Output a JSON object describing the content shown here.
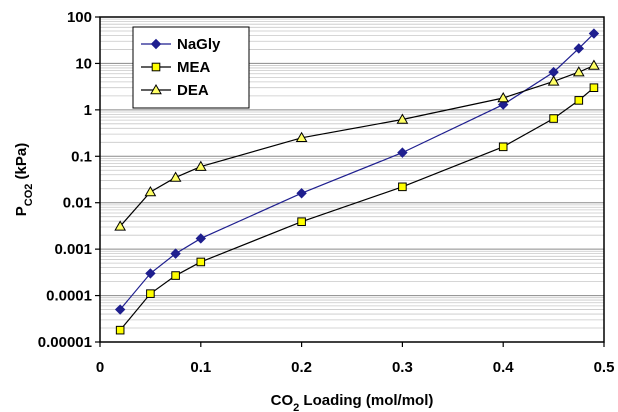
{
  "chart_data": {
    "type": "scatter",
    "xlabel": {
      "main": "CO",
      "sub": "2",
      "rest": " Loading (mol/mol)"
    },
    "ylabel": {
      "main": "P",
      "sub": "CO2",
      "rest": " (kPa)"
    },
    "xlim": [
      0,
      0.5
    ],
    "ylim": [
      1e-05,
      100
    ],
    "yscale": "log",
    "grid": true,
    "legend_position": "top-left",
    "x_ticks": [
      "0",
      "0.1",
      "0.2",
      "0.3",
      "0.4",
      "0.5"
    ],
    "y_ticks": [
      "0.00001",
      "0.0001",
      "0.001",
      "0.01",
      "0.1",
      "1",
      "10",
      "100"
    ],
    "series": [
      {
        "name": "NaGly",
        "color": "#1f1f8f",
        "marker": "diamond",
        "x": [
          0.02,
          0.05,
          0.075,
          0.1,
          0.2,
          0.3,
          0.4,
          0.45,
          0.475,
          0.49
        ],
        "y": [
          5e-05,
          0.0003,
          0.0008,
          0.0017,
          0.016,
          0.12,
          1.3,
          6.5,
          21,
          44
        ]
      },
      {
        "name": "MEA",
        "color": "#ffff00",
        "marker": "square",
        "x": [
          0.02,
          0.05,
          0.075,
          0.1,
          0.2,
          0.3,
          0.4,
          0.45,
          0.475,
          0.49
        ],
        "y": [
          1.8e-05,
          0.00011,
          0.00027,
          0.00053,
          0.0039,
          0.022,
          0.16,
          0.65,
          1.6,
          3
        ]
      },
      {
        "name": "DEA",
        "color": "#ffff66",
        "marker": "triangle",
        "x": [
          0.02,
          0.05,
          0.075,
          0.1,
          0.2,
          0.3,
          0.4,
          0.45,
          0.475,
          0.49
        ],
        "y": [
          0.0031,
          0.017,
          0.035,
          0.06,
          0.25,
          0.62,
          1.8,
          4.1,
          6.5,
          9
        ]
      }
    ]
  }
}
